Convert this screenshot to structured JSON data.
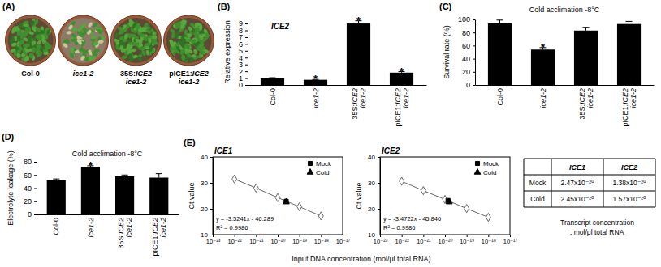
{
  "photo": {
    "panel_label": "(A)",
    "labels": [
      "Col-0",
      "ice1-2",
      "35S:ICE2 ice1-2",
      "pICE1:ICE2 ice1-2"
    ]
  },
  "chart_data": [
    {
      "type": "bar",
      "panel_label": "(B)",
      "title": "ICE2",
      "ylabel": "Relative expression",
      "categories": [
        "Col-0",
        "ice1-2",
        "35S:ICE2 ice1-2",
        "pICE1:ICE2 ice1-2"
      ],
      "values": [
        1.0,
        0.75,
        9.0,
        1.8
      ],
      "errors": [
        0.06,
        0.05,
        0.4,
        0.15
      ],
      "color": "#000000",
      "ylim": [
        0,
        9.6
      ],
      "yticks": [
        0,
        1,
        2,
        3,
        4,
        5,
        6,
        7,
        8,
        9
      ],
      "grid": false,
      "annotations": [
        {
          "category": "ice1-2",
          "text": "*"
        },
        {
          "category": "35S:ICE2 ice1-2",
          "text": "*"
        },
        {
          "category": "pICE1:ICE2 ice1-2",
          "text": "*"
        }
      ]
    },
    {
      "type": "bar",
      "panel_label": "(C)",
      "title": "Cold acclimation -8°C",
      "ylabel": "Survival rate (%)",
      "categories": [
        "Col-0",
        "ice1-2",
        "35S:ICE2 ice1-2",
        "pICE1:ICE2 ice1-2"
      ],
      "values": [
        94,
        54,
        83,
        93
      ],
      "errors": [
        5,
        3,
        5,
        4
      ],
      "color": "#000000",
      "ylim": [
        0,
        100
      ],
      "yticks": [
        0,
        20,
        40,
        60,
        80,
        100
      ],
      "grid": false,
      "annotations": [
        {
          "category": "ice1-2",
          "text": "*"
        }
      ]
    },
    {
      "type": "bar",
      "panel_label": "(D)",
      "title": "Cold acclimation -8°C",
      "ylabel": "Electrolyte leakage (%)",
      "categories": [
        "Col-0",
        "ice1-2",
        "35S:ICE2 ice1-2",
        "pICE1:ICE2 ice1-2"
      ],
      "values": [
        52,
        72,
        58,
        56
      ],
      "errors": [
        2,
        2,
        2,
        6
      ],
      "color": "#000000",
      "ylim": [
        0,
        80
      ],
      "yticks": [
        0,
        20,
        40,
        60,
        80
      ],
      "grid": false,
      "annotations": [
        {
          "category": "ice1-2",
          "text": "*"
        }
      ]
    },
    {
      "type": "scatter",
      "panel_label": "(E)",
      "title": "ICE1",
      "xlabel": "Input DNA concentration (mol/μl total RNA)",
      "ylabel": "Ct value",
      "log": "x",
      "xlim": [
        1e-23,
        1e-17
      ],
      "xticks": [
        {
          "value": 1e-23,
          "label": "10⁻²³"
        },
        {
          "value": 1e-22,
          "label": "10⁻²²"
        },
        {
          "value": 1e-21,
          "label": "10⁻²¹"
        },
        {
          "value": 1e-20,
          "label": "10⁻²⁰"
        },
        {
          "value": 1e-19,
          "label": "10⁻¹⁹"
        },
        {
          "value": 1e-18,
          "label": "10⁻¹⁸"
        },
        {
          "value": 1e-17,
          "label": "10⁻¹⁷"
        }
      ],
      "ylim": [
        10,
        40
      ],
      "yticks": [
        10,
        20,
        30,
        40
      ],
      "grid": false,
      "legend": "top-right",
      "annotations": [
        "y = -3.5241x - 46.289",
        "R² = 0.9986"
      ],
      "series": [
        {
          "x": [
            1e-22,
            1e-21,
            1e-20,
            1e-19,
            1e-18
          ],
          "values": [
            31.5,
            28.0,
            24.3,
            20.8,
            17.2
          ],
          "color": "#666666",
          "marker": "diamond-open",
          "line_style": "solid"
        },
        {
          "name": "Mock",
          "x": [
            2.47e-20
          ],
          "values": [
            22.9
          ],
          "color": "#000000",
          "marker": "square",
          "line_style": "none"
        },
        {
          "name": "Cold",
          "x": [
            2.45e-20
          ],
          "values": [
            22.6
          ],
          "color": "#000000",
          "marker": "triangle",
          "line_style": "none"
        }
      ]
    },
    {
      "type": "scatter",
      "title": "ICE2",
      "ylabel": "Ct value",
      "log": "x",
      "xlim": [
        1e-23,
        1e-17
      ],
      "xticks": [
        {
          "value": 1e-23,
          "label": "10⁻²³"
        },
        {
          "value": 1e-22,
          "label": "10⁻²²"
        },
        {
          "value": 1e-21,
          "label": "10⁻²¹"
        },
        {
          "value": 1e-20,
          "label": "10⁻²⁰"
        },
        {
          "value": 1e-19,
          "label": "10⁻¹⁹"
        },
        {
          "value": 1e-18,
          "label": "10⁻¹⁸"
        },
        {
          "value": 1e-17,
          "label": "10⁻¹⁷"
        }
      ],
      "ylim": [
        10,
        40
      ],
      "yticks": [
        10,
        20,
        30,
        40
      ],
      "grid": false,
      "legend": "top-right",
      "annotations": [
        "y = -3.4722x - 45.846",
        "R² = 0.9986"
      ],
      "series": [
        {
          "x": [
            1e-22,
            1e-21,
            1e-20,
            1e-19,
            1e-18
          ],
          "values": [
            30.6,
            27.0,
            23.6,
            20.1,
            16.7
          ],
          "color": "#666666",
          "marker": "diamond-open",
          "line_style": "solid"
        },
        {
          "name": "Mock",
          "x": [
            1.38e-20
          ],
          "values": [
            23.2
          ],
          "color": "#000000",
          "marker": "square",
          "line_style": "none"
        },
        {
          "name": "Cold",
          "x": [
            1.57e-20
          ],
          "values": [
            22.6
          ],
          "color": "#000000",
          "marker": "triangle",
          "line_style": "none"
        }
      ]
    }
  ],
  "table": {
    "columns": [
      "ICE1",
      "ICE2"
    ],
    "rows": [
      {
        "label": "Mock",
        "cells": [
          "2.47x10⁻²⁰",
          "1.38x10⁻²⁰"
        ]
      },
      {
        "label": "Cold",
        "cells": [
          "2.45x10⁻²⁰",
          "1.57x10⁻²⁰"
        ]
      }
    ],
    "caption": [
      "Transcript concentration",
      ": mol/μl total RNA"
    ]
  }
}
